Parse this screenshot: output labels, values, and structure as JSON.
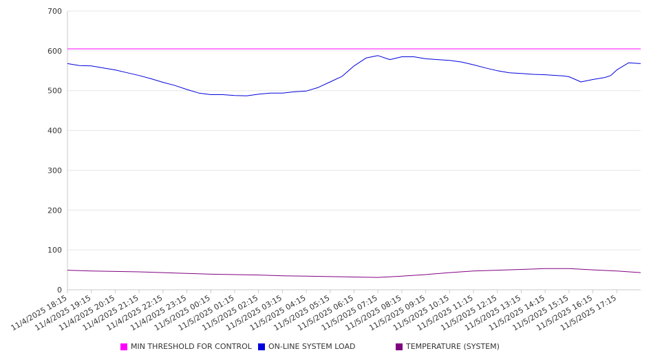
{
  "chart_data": {
    "type": "line",
    "title": "",
    "xlabel": "",
    "ylabel": "",
    "ylim": [
      0,
      700
    ],
    "y_ticks": [
      0,
      100,
      200,
      300,
      400,
      500,
      600,
      700
    ],
    "grid": "horizontal",
    "legend_position": "bottom",
    "x_tick_labels": [
      "11/4/2025 18:15",
      "11/4/2025 19:15",
      "11/4/2025 20:15",
      "11/4/2025 21:15",
      "11/4/2025 22:15",
      "11/4/2025 23:15",
      "11/5/2025 00:15",
      "11/5/2025 01:15",
      "11/5/2025 02:15",
      "11/5/2025 03:15",
      "11/5/2025 04:15",
      "11/5/2025 05:15",
      "11/5/2025 06:15",
      "11/5/2025 07:15",
      "11/5/2025 08:15",
      "11/5/2025 09:15",
      "11/5/2025 10:15",
      "11/5/2025 11:15",
      "11/5/2025 12:15",
      "11/5/2025 13:15",
      "11/5/2025 14:15",
      "11/5/2025 15:15",
      "11/5/2025 16:15",
      "11/5/2025 17:15"
    ],
    "x_range": [
      "11/4/2025 18:15",
      "11/5/2025 18:15"
    ],
    "series": [
      {
        "name": "MIN THRESHOLD FOR CONTROL",
        "color": "#ff00ff",
        "x": [
          "11/4/2025 18:15",
          "11/5/2025 18:15"
        ],
        "y": [
          605,
          605
        ]
      },
      {
        "name": "ON-LINE SYSTEM LOAD",
        "color": "#0000dd",
        "x": [
          "11/4/2025 18:15",
          "11/4/2025 18:45",
          "11/4/2025 19:15",
          "11/4/2025 19:45",
          "11/4/2025 20:15",
          "11/4/2025 20:45",
          "11/4/2025 21:15",
          "11/4/2025 21:45",
          "11/4/2025 22:15",
          "11/4/2025 22:45",
          "11/4/2025 23:15",
          "11/4/2025 23:45",
          "11/5/2025 00:15",
          "11/5/2025 00:45",
          "11/5/2025 01:15",
          "11/5/2025 01:45",
          "11/5/2025 02:15",
          "11/5/2025 02:45",
          "11/5/2025 03:15",
          "11/5/2025 03:45",
          "11/5/2025 04:15",
          "11/5/2025 04:45",
          "11/5/2025 05:15",
          "11/5/2025 05:45",
          "11/5/2025 06:15",
          "11/5/2025 06:45",
          "11/5/2025 07:15",
          "11/5/2025 07:45",
          "11/5/2025 08:15",
          "11/5/2025 08:45",
          "11/5/2025 09:15",
          "11/5/2025 09:45",
          "11/5/2025 10:15",
          "11/5/2025 10:45",
          "11/5/2025 11:15",
          "11/5/2025 11:45",
          "11/5/2025 12:15",
          "11/5/2025 12:45",
          "11/5/2025 13:15",
          "11/5/2025 13:45",
          "11/5/2025 14:15",
          "11/5/2025 14:45",
          "11/5/2025 15:00",
          "11/5/2025 15:15",
          "11/5/2025 15:45",
          "11/5/2025 16:15",
          "11/5/2025 16:45",
          "11/5/2025 17:00",
          "11/5/2025 17:15",
          "11/5/2025 17:45",
          "11/5/2025 18:15"
        ],
        "y": [
          568,
          563,
          562,
          557,
          552,
          545,
          538,
          530,
          521,
          513,
          503,
          494,
          490,
          490,
          488,
          487,
          491,
          494,
          494,
          497,
          499,
          508,
          522,
          536,
          562,
          582,
          588,
          578,
          585,
          585,
          580,
          578,
          576,
          572,
          565,
          557,
          550,
          545,
          543,
          541,
          540,
          538,
          537,
          535,
          522,
          528,
          533,
          538,
          552,
          570,
          568
        ]
      },
      {
        "name": "TEMPERATURE (SYSTEM)",
        "color": "#800080",
        "x": [
          "11/4/2025 18:15",
          "11/4/2025 19:15",
          "11/4/2025 20:15",
          "11/4/2025 21:15",
          "11/4/2025 22:15",
          "11/4/2025 23:15",
          "11/5/2025 00:15",
          "11/5/2025 01:15",
          "11/5/2025 02:15",
          "11/5/2025 03:15",
          "11/5/2025 04:15",
          "11/5/2025 05:15",
          "11/5/2025 06:15",
          "11/5/2025 07:15",
          "11/5/2025 08:15",
          "11/5/2025 09:15",
          "11/5/2025 10:15",
          "11/5/2025 11:15",
          "11/5/2025 12:15",
          "11/5/2025 13:15",
          "11/5/2025 14:15",
          "11/5/2025 15:15",
          "11/5/2025 16:15",
          "11/5/2025 17:15",
          "11/5/2025 18:15"
        ],
        "y": [
          49,
          47,
          46,
          45,
          43,
          41,
          39,
          38,
          37,
          35,
          34,
          33,
          32,
          31,
          34,
          38,
          43,
          47,
          49,
          51,
          53,
          53,
          50,
          47,
          43
        ]
      }
    ]
  }
}
